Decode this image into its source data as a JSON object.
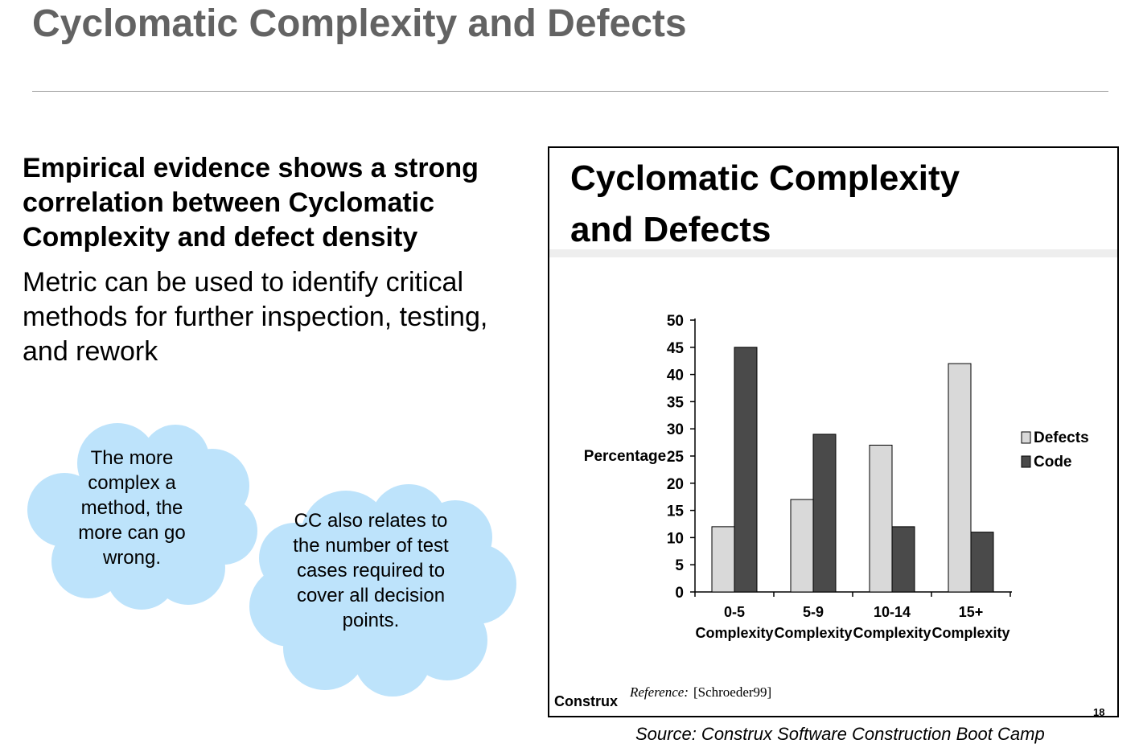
{
  "slide": {
    "title": "Cyclomatic Complexity and Defects",
    "bullet_strong": "Empirical evidence shows a strong correlation between Cyclomatic Complexity and defect density",
    "bullet_normal": "Metric can be used to identify critical methods for further inspection, testing, and rework",
    "source": "Source: Construx Software Construction Boot Camp"
  },
  "callouts": [
    {
      "text": "The more complex a method, the more can go wrong."
    },
    {
      "text": "CC also relates to the number of test cases required to cover all decision points."
    }
  ],
  "colors": {
    "title": "#636363",
    "cloud_fill": "#bde3fb",
    "defects_bar": "#d9d9d9",
    "code_bar": "#4a4a4a"
  },
  "chart_data": {
    "type": "bar",
    "title": "Cyclomatic Complexity and Defects",
    "title_lines": [
      "Cyclomatic Complexity",
      "and Defects"
    ],
    "categories": [
      [
        "0-5",
        "Complexity"
      ],
      [
        "5-9",
        "Complexity"
      ],
      [
        "10-14",
        "Complexity"
      ],
      [
        "15+",
        "Complexity"
      ]
    ],
    "series": [
      {
        "name": "Defects",
        "values": [
          12,
          17,
          27,
          42
        ]
      },
      {
        "name": "Code",
        "values": [
          45,
          29,
          12,
          11
        ]
      }
    ],
    "xlabel": "",
    "ylabel": "Percentage",
    "ylim": [
      0,
      50
    ],
    "yticks": [
      0,
      5,
      10,
      15,
      20,
      25,
      30,
      35,
      40,
      45,
      50
    ],
    "grid": false,
    "legend": "right",
    "footer_brand": "Construx",
    "reference_label": "Reference:",
    "reference_text": "[Schroeder99]",
    "page_number": "18"
  }
}
